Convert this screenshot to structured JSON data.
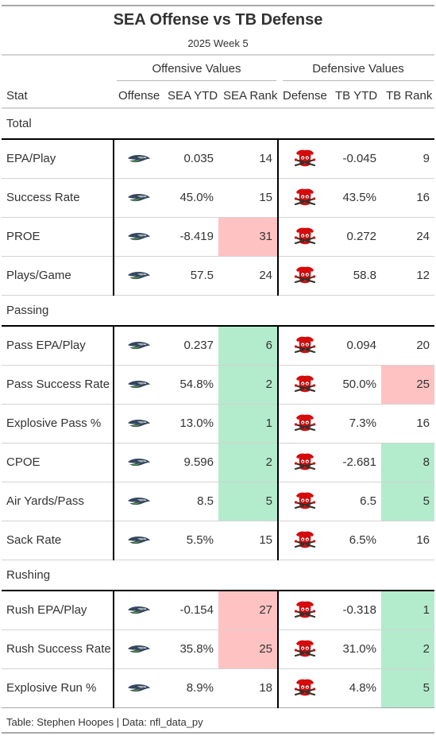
{
  "title": "SEA Offense vs TB Defense",
  "subtitle": "2025 Week 5",
  "spanners": {
    "offense": "Offensive Values",
    "defense": "Defensive Values"
  },
  "columns": {
    "stat": "Stat",
    "offense": "Offense",
    "sea_ytd": "SEA YTD",
    "sea_rank": "SEA Rank",
    "defense": "Defense",
    "tb_ytd": "TB YTD",
    "tb_rank": "TB Rank"
  },
  "logos": {
    "offense": "seahawks-logo-icon",
    "defense": "buccaneers-logo-icon"
  },
  "colors": {
    "good": "#b3ebcd",
    "bad": "#ffc2c2",
    "seahawks_navy": "#002244",
    "seahawks_blue": "#69be28",
    "bucs_red": "#d50a0a",
    "bucs_pewter": "#34302b"
  },
  "groups": [
    {
      "label": "Total",
      "rows": [
        {
          "stat": "EPA/Play",
          "sea_ytd": "0.035",
          "sea_rank": "14",
          "sea_status": "",
          "tb_ytd": "-0.045",
          "tb_rank": "9",
          "tb_status": ""
        },
        {
          "stat": "Success Rate",
          "sea_ytd": "45.0%",
          "sea_rank": "15",
          "sea_status": "",
          "tb_ytd": "43.5%",
          "tb_rank": "16",
          "tb_status": ""
        },
        {
          "stat": "PROE",
          "sea_ytd": "-8.419",
          "sea_rank": "31",
          "sea_status": "bad",
          "tb_ytd": "0.272",
          "tb_rank": "24",
          "tb_status": ""
        },
        {
          "stat": "Plays/Game",
          "sea_ytd": "57.5",
          "sea_rank": "24",
          "sea_status": "",
          "tb_ytd": "58.8",
          "tb_rank": "12",
          "tb_status": ""
        }
      ]
    },
    {
      "label": "Passing",
      "rows": [
        {
          "stat": "Pass EPA/Play",
          "sea_ytd": "0.237",
          "sea_rank": "6",
          "sea_status": "good",
          "tb_ytd": "0.094",
          "tb_rank": "20",
          "tb_status": ""
        },
        {
          "stat": "Pass Success Rate",
          "sea_ytd": "54.8%",
          "sea_rank": "2",
          "sea_status": "good",
          "tb_ytd": "50.0%",
          "tb_rank": "25",
          "tb_status": "bad"
        },
        {
          "stat": "Explosive Pass %",
          "sea_ytd": "13.0%",
          "sea_rank": "1",
          "sea_status": "good",
          "tb_ytd": "7.3%",
          "tb_rank": "16",
          "tb_status": ""
        },
        {
          "stat": "CPOE",
          "sea_ytd": "9.596",
          "sea_rank": "2",
          "sea_status": "good",
          "tb_ytd": "-2.681",
          "tb_rank": "8",
          "tb_status": "good"
        },
        {
          "stat": "Air Yards/Pass",
          "sea_ytd": "8.5",
          "sea_rank": "5",
          "sea_status": "good",
          "tb_ytd": "6.5",
          "tb_rank": "5",
          "tb_status": "good"
        },
        {
          "stat": "Sack Rate",
          "sea_ytd": "5.5%",
          "sea_rank": "15",
          "sea_status": "",
          "tb_ytd": "6.5%",
          "tb_rank": "16",
          "tb_status": ""
        }
      ]
    },
    {
      "label": "Rushing",
      "rows": [
        {
          "stat": "Rush EPA/Play",
          "sea_ytd": "-0.154",
          "sea_rank": "27",
          "sea_status": "bad",
          "tb_ytd": "-0.318",
          "tb_rank": "1",
          "tb_status": "good"
        },
        {
          "stat": "Rush Success Rate",
          "sea_ytd": "35.8%",
          "sea_rank": "25",
          "sea_status": "bad",
          "tb_ytd": "31.0%",
          "tb_rank": "2",
          "tb_status": "good"
        },
        {
          "stat": "Explosive Run %",
          "sea_ytd": "8.9%",
          "sea_rank": "18",
          "sea_status": "",
          "tb_ytd": "4.8%",
          "tb_rank": "5",
          "tb_status": "good"
        }
      ]
    }
  ],
  "footer": "Table: Stephen Hoopes | Data: nfl_data_py"
}
